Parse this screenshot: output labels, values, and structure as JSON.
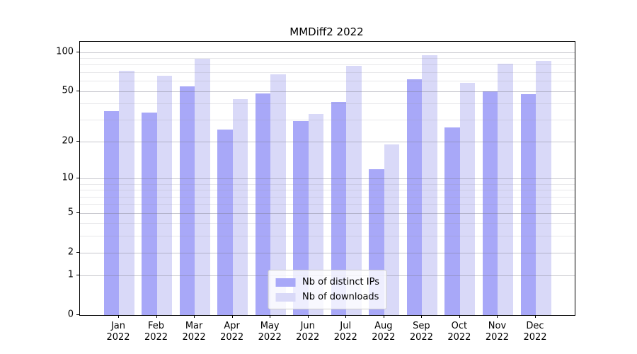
{
  "title": "MMDiff2 2022",
  "chart_data": {
    "type": "bar",
    "title": "MMDiff2 2022",
    "year": "2022",
    "categories": [
      "Jan",
      "Feb",
      "Mar",
      "Apr",
      "May",
      "Jun",
      "Jul",
      "Aug",
      "Sep",
      "Oct",
      "Nov",
      "Dec"
    ],
    "series": [
      {
        "name": "Nb of distinct IPs",
        "color": "#a8a8f8",
        "values": [
          35,
          34,
          54,
          25,
          48,
          29,
          41,
          12,
          62,
          26,
          50,
          47
        ]
      },
      {
        "name": "Nb of downloads",
        "color": "#d9d9f8",
        "values": [
          72,
          66,
          89,
          43,
          67,
          33,
          78,
          19,
          94,
          58,
          81,
          86
        ]
      }
    ],
    "xlabel": "",
    "ylabel": "",
    "yscale": "log1p",
    "ylim": [
      0,
      120
    ],
    "y_major_ticks": [
      100,
      50,
      20,
      10,
      5,
      2,
      1,
      0
    ],
    "y_minor_gridlines": [
      90,
      80,
      70,
      60,
      40,
      30,
      9,
      8,
      7,
      6,
      4,
      3
    ],
    "grid": true,
    "legend_position": "lower center"
  }
}
